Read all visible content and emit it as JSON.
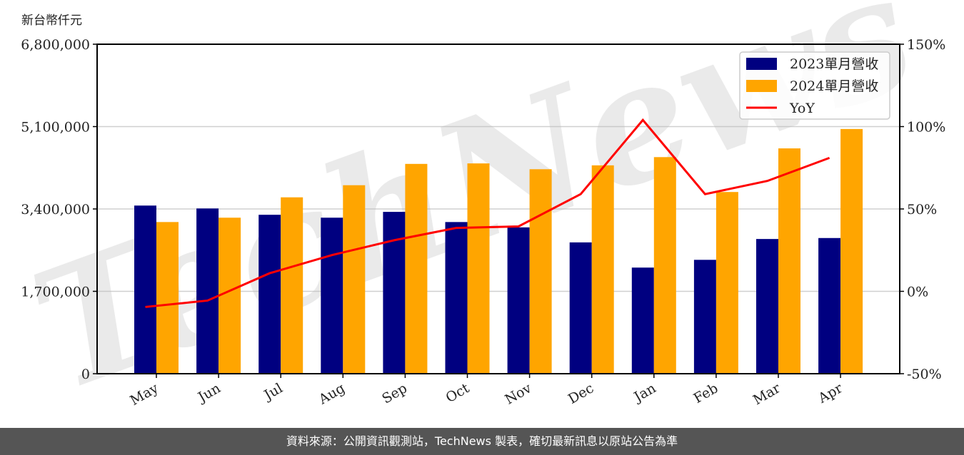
{
  "chart_data": {
    "type": "bar",
    "title": "",
    "ylabel": "新台幣仟元",
    "xlabel": "",
    "categories": [
      "May",
      "Jun",
      "Jul",
      "Aug",
      "Sep",
      "Oct",
      "Nov",
      "Dec",
      "Jan",
      "Feb",
      "Mar",
      "Apr"
    ],
    "series": [
      {
        "name": "2023單月營收",
        "type": "bar",
        "axis": "left",
        "color": "#000080",
        "values": [
          3470000,
          3410000,
          3280000,
          3220000,
          3340000,
          3130000,
          3020000,
          2710000,
          2190000,
          2350000,
          2780000,
          2800000
        ]
      },
      {
        "name": "2024單月營收",
        "type": "bar",
        "axis": "left",
        "color": "#FFA500",
        "values": [
          3130000,
          3220000,
          3640000,
          3890000,
          4330000,
          4340000,
          4220000,
          4300000,
          4470000,
          3750000,
          4650000,
          5050000
        ]
      },
      {
        "name": "YoY",
        "type": "line",
        "axis": "right",
        "color": "#FF0000",
        "unit": "%",
        "values": [
          -9.5,
          -5.6,
          11.0,
          22.0,
          31.0,
          38.5,
          39.4,
          59.0,
          104.0,
          59.0,
          67.0,
          81.0
        ]
      }
    ],
    "ylim": [
      0,
      6800000
    ],
    "y_ticks": [
      "0",
      "1,700,000",
      "3,400,000",
      "5,100,000",
      "6,800,000"
    ],
    "y_tick_values": [
      0,
      1700000,
      3400000,
      5100000,
      6800000
    ],
    "y2lim": [
      -50,
      150
    ],
    "y2_ticks": [
      "-50%",
      "0%",
      "50%",
      "100%",
      "150%"
    ],
    "y2_tick_values": [
      -50,
      0,
      50,
      100,
      150
    ],
    "grid": true,
    "legend_position": "upper right",
    "watermark": "TechNews"
  },
  "labels": {
    "unit": "新台幣仟元",
    "footer": "資料來源：公開資訊觀測站，TechNews 製表，確切最新訊息以原站公告為準"
  }
}
